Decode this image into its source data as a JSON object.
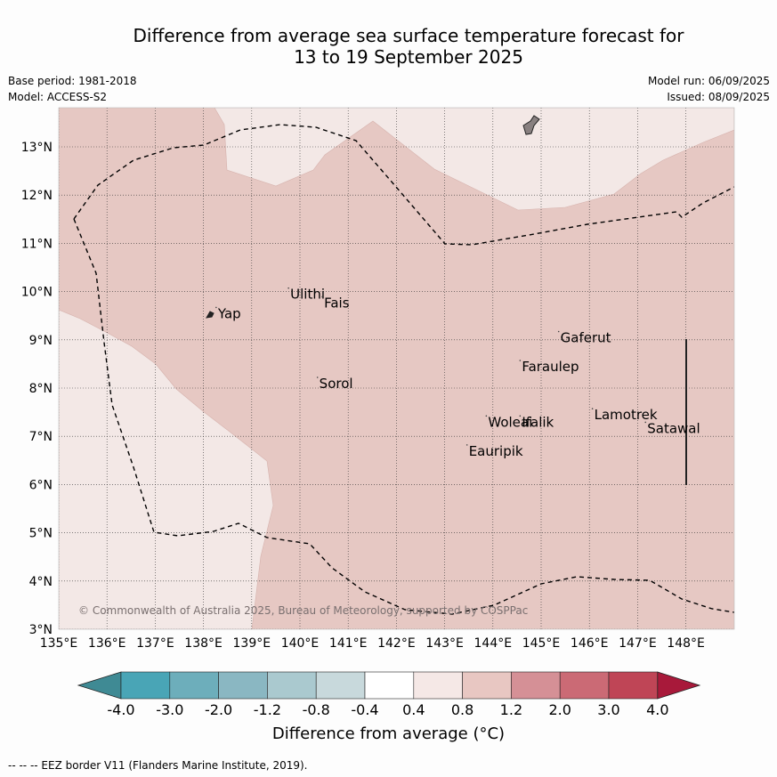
{
  "title": {
    "line1": "Difference from average sea surface temperature forecast for",
    "line2": "13 to 19 September 2025"
  },
  "meta": {
    "base_period": "Base period: 1981-2018",
    "model": "Model: ACCESS-S2",
    "model_run": "Model run: 06/09/2025",
    "issued": "Issued: 08/09/2025"
  },
  "map": {
    "lon_range": [
      135,
      149
    ],
    "lat_range": [
      3,
      13.8
    ],
    "lon_ticks": [
      "135°E",
      "136°E",
      "137°E",
      "138°E",
      "139°E",
      "140°E",
      "141°E",
      "142°E",
      "143°E",
      "144°E",
      "145°E",
      "146°E",
      "147°E",
      "148°E"
    ],
    "lat_ticks": [
      "3°N",
      "4°N",
      "5°N",
      "6°N",
      "7°N",
      "8°N",
      "9°N",
      "10°N",
      "11°N",
      "12°N",
      "13°N"
    ],
    "places": [
      {
        "name": "Yap",
        "lon": 138.3,
        "lat": 9.45
      },
      {
        "name": "Ulithi",
        "lon": 139.8,
        "lat": 9.85
      },
      {
        "name": "Fais",
        "lon": 140.5,
        "lat": 9.67
      },
      {
        "name": "Gaferut",
        "lon": 145.4,
        "lat": 8.95
      },
      {
        "name": "Faraulep",
        "lon": 144.6,
        "lat": 8.35
      },
      {
        "name": "Sorol",
        "lon": 140.4,
        "lat": 8.0
      },
      {
        "name": "Woleai",
        "lon": 143.9,
        "lat": 7.2
      },
      {
        "name": "Ifalik",
        "lon": 144.6,
        "lat": 7.2
      },
      {
        "name": "Lamotrek",
        "lon": 146.1,
        "lat": 7.35
      },
      {
        "name": "Satawal",
        "lon": 147.2,
        "lat": 7.07
      },
      {
        "name": "Eauripik",
        "lon": 143.5,
        "lat": 6.6
      }
    ],
    "copyright": "© Commonwealth of Australia 2025, Bureau of Meteorology, supported by COSPPac",
    "colors": {
      "anomaly_0.8_1.2": "#e6c8c3",
      "anomaly_0.4_0.8": "#f3e8e6",
      "land": "#888080"
    }
  },
  "colorbar": {
    "labels": [
      "-4.0",
      "-3.0",
      "-2.0",
      "-1.2",
      "-0.8",
      "-0.4",
      "0.4",
      "0.8",
      "1.2",
      "2.0",
      "3.0",
      "4.0"
    ],
    "colors": [
      "#3f8a94",
      "#49a5b6",
      "#6daebb",
      "#8ab7c2",
      "#aac9cf",
      "#c8d9dc",
      "#ffffff",
      "#f5e8e6",
      "#e8c7c2",
      "#d59096",
      "#cb6a75",
      "#bf4556",
      "#a8193a"
    ],
    "title": "Difference from average (°C)"
  },
  "footnote": "--  --  -- EEZ border V11 (Flanders Marine Institute, 2019)."
}
